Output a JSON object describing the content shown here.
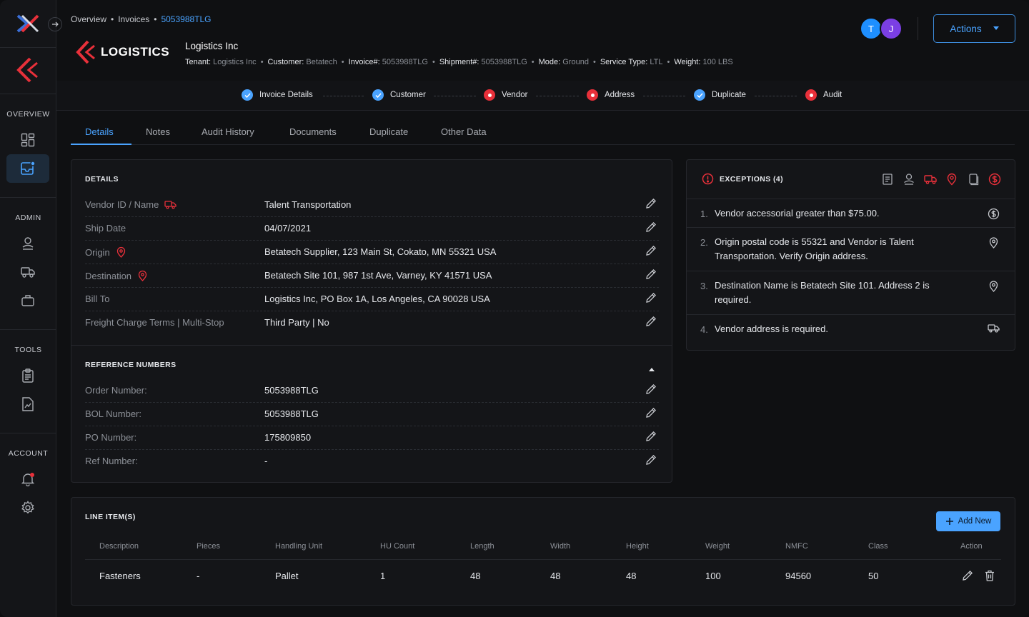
{
  "breadcrumb": [
    "Overview",
    "Invoices",
    "5053988TLG"
  ],
  "brand": "LOGISTICS",
  "company": "Logistics Inc",
  "meta": [
    {
      "k": "Tenant:",
      "v": "Logistics Inc"
    },
    {
      "k": "Customer:",
      "v": "Betatech"
    },
    {
      "k": "Invoice#:",
      "v": "5053988TLG"
    },
    {
      "k": "Shipment#:",
      "v": "5053988TLG"
    },
    {
      "k": "Mode:",
      "v": "Ground"
    },
    {
      "k": "Service Type:",
      "v": "LTL"
    },
    {
      "k": "Weight:",
      "v": "100 LBS"
    }
  ],
  "avatars": [
    {
      "initial": "T",
      "color": "#1e8fff"
    },
    {
      "initial": "J",
      "color": "#7b3fe4"
    }
  ],
  "actions_label": "Actions",
  "sidebar": {
    "overview": "OVERVIEW",
    "admin": "ADMIN",
    "tools": "TOOLS",
    "account": "ACCOUNT"
  },
  "steps": [
    {
      "label": "Invoice Details",
      "status": "ok"
    },
    {
      "label": "Customer",
      "status": "ok"
    },
    {
      "label": "Vendor",
      "status": "error"
    },
    {
      "label": "Address",
      "status": "error"
    },
    {
      "label": "Duplicate",
      "status": "ok"
    },
    {
      "label": "Audit",
      "status": "error"
    }
  ],
  "tabs": [
    "Details",
    "Notes",
    "Audit History",
    "Documents",
    "Duplicate",
    "Other Data"
  ],
  "details": {
    "title": "DETAILS",
    "rows": [
      {
        "label": "Vendor ID / Name",
        "value": "Talent Transportation"
      },
      {
        "label": "Ship Date",
        "value": "04/07/2021"
      },
      {
        "label": "Origin",
        "value": "Betatech Supplier, 123 Main St, Cokato, MN 55321 USA"
      },
      {
        "label": "Destination",
        "value": "Betatech Site 101, 987 1st Ave, Varney, KY 41571 USA"
      },
      {
        "label": "Bill To",
        "value": "Logistics Inc, PO Box 1A, Los Angeles, CA 90028 USA"
      },
      {
        "label": "Freight Charge Terms | Multi-Stop",
        "value": "Third Party | No"
      }
    ]
  },
  "reference": {
    "title": "REFERENCE NUMBERS",
    "rows": [
      {
        "label": "Order Number:",
        "value": "5053988TLG"
      },
      {
        "label": "BOL Number:",
        "value": "5053988TLG"
      },
      {
        "label": "PO Number:",
        "value": "175809850"
      },
      {
        "label": "Ref Number:",
        "value": "-"
      }
    ]
  },
  "exceptions": {
    "title": "EXCEPTIONS (4)",
    "items": [
      {
        "num": "1.",
        "text": "Vendor accessorial greater than $75.00.",
        "icon": "dollar-icon"
      },
      {
        "num": "2.",
        "text": "Origin postal code is 55321 and Vendor is Talent Transportation. Verify Origin address.",
        "icon": "location-pin-icon"
      },
      {
        "num": "3.",
        "text": "Destination Name is Betatech Site 101. Address 2 is required.",
        "icon": "location-pin-icon"
      },
      {
        "num": "4.",
        "text": "Vendor address is required.",
        "icon": "truck-icon"
      }
    ]
  },
  "line_items": {
    "title": "LINE ITEM(S)",
    "add_label": "Add New",
    "headers": [
      "Description",
      "Pieces",
      "Handling Unit",
      "HU Count",
      "Length",
      "Width",
      "Height",
      "Weight",
      "NMFC",
      "Class",
      "Action"
    ],
    "rows": [
      [
        "Fasteners",
        "-",
        "Pallet",
        "1",
        "48",
        "48",
        "48",
        "100",
        "94560",
        "50"
      ]
    ]
  },
  "colors": {
    "accent": "#4aa3ff",
    "error": "#e8303a",
    "bg": "#0f1012",
    "panel": "#141518"
  }
}
